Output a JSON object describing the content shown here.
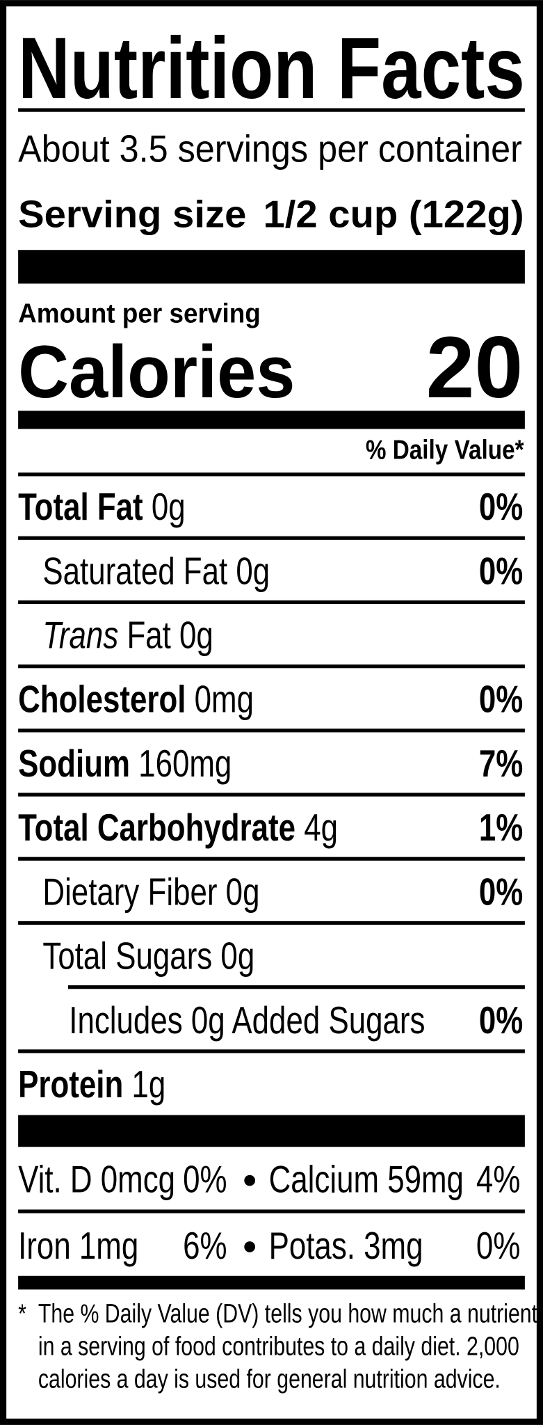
{
  "title": "Nutrition Facts",
  "servings": "About 3.5 servings per container",
  "serving_size": {
    "label": "Serving size",
    "value": "1/2 cup (122g)"
  },
  "amount_per_serving": "Amount per serving",
  "calories": {
    "label": "Calories",
    "value": "20"
  },
  "daily_value_header": "% Daily Value*",
  "nutrients": [
    {
      "name": "Total Fat",
      "amount": "0g",
      "dv": "0%",
      "bold": true,
      "indent": 0
    },
    {
      "name": "Saturated Fat",
      "amount": "0g",
      "dv": "0%",
      "bold": false,
      "indent": 1
    },
    {
      "italic": "Trans",
      "name": "Fat",
      "amount": "0g",
      "bold": false,
      "indent": 1
    },
    {
      "name": "Cholesterol",
      "amount": "0mg",
      "dv": "0%",
      "bold": true,
      "indent": 0
    },
    {
      "name": "Sodium",
      "amount": "160mg",
      "dv": "7%",
      "bold": true,
      "indent": 0
    },
    {
      "name": "Total Carbohydrate",
      "amount": "4g",
      "dv": "1%",
      "bold": true,
      "indent": 0
    },
    {
      "name": "Dietary Fiber",
      "amount": "0g",
      "dv": "0%",
      "bold": false,
      "indent": 1
    },
    {
      "name": "Total Sugars",
      "amount": "0g",
      "bold": false,
      "indent": 1
    },
    {
      "name": "Includes 0g Added Sugars",
      "dv": "0%",
      "bold": false,
      "indent": 2
    },
    {
      "name": "Protein",
      "amount": "1g",
      "bold": true,
      "indent": 0
    }
  ],
  "vitamins": [
    [
      {
        "name": "Vit. D 0mcg",
        "dv": "0%"
      },
      {
        "name": "Calcium 59mg",
        "dv": "4%"
      }
    ],
    [
      {
        "name": "Iron 1mg",
        "dv": "6%"
      },
      {
        "name": "Potas. 3mg",
        "dv": "0%"
      }
    ]
  ],
  "footnote": {
    "marker": "*",
    "lines": [
      "The % Daily Value (DV) tells you how much a nutrient",
      "in a serving of food contributes to a daily diet. 2,000",
      "calories a day is used for general nutrition advice."
    ]
  }
}
